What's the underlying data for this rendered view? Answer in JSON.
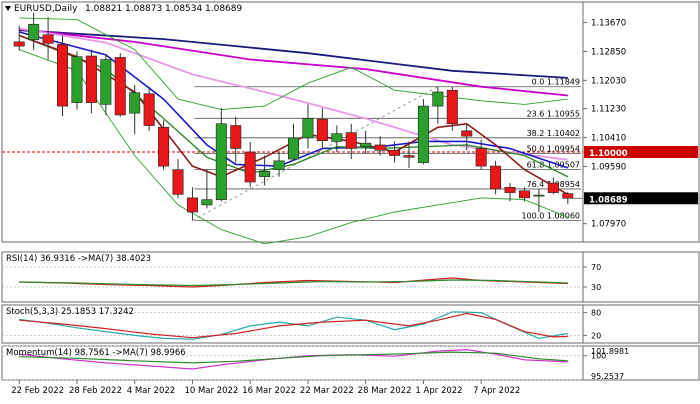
{
  "chart_data": [
    {
      "type": "candlestick",
      "title": "EURUSD,Daily",
      "title_values": [
        "1.08821",
        "1.08873",
        "1.08534",
        "1.08689"
      ],
      "colors": {
        "bull": "#2ca02c",
        "bear": "#e8181a",
        "wick": "#333333",
        "price_line": "#e8181a"
      },
      "ylim": [
        1.0745,
        1.1425
      ],
      "y_ticks": [
        "1.13670",
        "1.12850",
        "1.12030",
        "1.11230",
        "1.10410",
        "1.09590",
        "1.07970"
      ],
      "current_price": "1.08689",
      "candles": [
        {
          "o": 1.1312,
          "h": 1.1358,
          "l": 1.1288,
          "c": 1.13
        },
        {
          "o": 1.1318,
          "h": 1.1395,
          "l": 1.129,
          "c": 1.1362
        },
        {
          "o": 1.1332,
          "h": 1.1382,
          "l": 1.1262,
          "c": 1.1308
        },
        {
          "o": 1.1305,
          "h": 1.133,
          "l": 1.1102,
          "c": 1.113
        },
        {
          "o": 1.114,
          "h": 1.1285,
          "l": 1.112,
          "c": 1.127
        },
        {
          "o": 1.1272,
          "h": 1.129,
          "l": 1.111,
          "c": 1.114
        },
        {
          "o": 1.1135,
          "h": 1.1275,
          "l": 1.1105,
          "c": 1.1262
        },
        {
          "o": 1.1268,
          "h": 1.128,
          "l": 1.11,
          "c": 1.1105
        },
        {
          "o": 1.111,
          "h": 1.119,
          "l": 1.105,
          "c": 1.1168
        },
        {
          "o": 1.1165,
          "h": 1.1185,
          "l": 1.106,
          "c": 1.1075
        },
        {
          "o": 1.107,
          "h": 1.109,
          "l": 1.095,
          "c": 1.096
        },
        {
          "o": 1.095,
          "h": 1.098,
          "l": 1.087,
          "c": 1.088
        },
        {
          "o": 1.087,
          "h": 1.09,
          "l": 1.0806,
          "c": 1.083
        },
        {
          "o": 1.085,
          "h": 1.095,
          "l": 1.084,
          "c": 1.0865
        },
        {
          "o": 1.0865,
          "h": 1.1125,
          "l": 1.086,
          "c": 1.108
        },
        {
          "o": 1.1075,
          "h": 1.11,
          "l": 1.097,
          "c": 1.101
        },
        {
          "o": 1.1,
          "h": 1.1028,
          "l": 1.09,
          "c": 1.0915
        },
        {
          "o": 1.093,
          "h": 1.099,
          "l": 1.0905,
          "c": 1.0945
        },
        {
          "o": 1.095,
          "h": 1.1,
          "l": 1.093,
          "c": 1.0975
        },
        {
          "o": 1.098,
          "h": 1.108,
          "l": 1.0975,
          "c": 1.104
        },
        {
          "o": 1.104,
          "h": 1.1135,
          "l": 1.101,
          "c": 1.1095
        },
        {
          "o": 1.1093,
          "h": 1.1125,
          "l": 1.101,
          "c": 1.1032
        },
        {
          "o": 1.103,
          "h": 1.1075,
          "l": 1.1,
          "c": 1.1052
        },
        {
          "o": 1.1055,
          "h": 1.108,
          "l": 1.098,
          "c": 1.101
        },
        {
          "o": 1.1015,
          "h": 1.106,
          "l": 1.0995,
          "c": 1.1025
        },
        {
          "o": 1.102,
          "h": 1.1045,
          "l": 1.099,
          "c": 1.1005
        },
        {
          "o": 1.1005,
          "h": 1.103,
          "l": 1.097,
          "c": 1.099
        },
        {
          "o": 1.099,
          "h": 1.103,
          "l": 1.0955,
          "c": 1.0985
        },
        {
          "o": 1.097,
          "h": 1.115,
          "l": 1.0965,
          "c": 1.113
        },
        {
          "o": 1.113,
          "h": 1.1185,
          "l": 1.108,
          "c": 1.117
        },
        {
          "o": 1.1175,
          "h": 1.1185,
          "l": 1.106,
          "c": 1.108
        },
        {
          "o": 1.106,
          "h": 1.108,
          "l": 1.1005,
          "c": 1.1045
        },
        {
          "o": 1.101,
          "h": 1.1035,
          "l": 1.095,
          "c": 1.096
        },
        {
          "o": 1.096,
          "h": 1.0975,
          "l": 1.088,
          "c": 1.0895
        },
        {
          "o": 1.09,
          "h": 1.0912,
          "l": 1.086,
          "c": 1.0885
        },
        {
          "o": 1.089,
          "h": 1.09,
          "l": 1.086,
          "c": 1.087
        },
        {
          "o": 1.0875,
          "h": 1.0895,
          "l": 1.083,
          "c": 1.0878
        },
        {
          "o": 1.0912,
          "h": 1.0928,
          "l": 1.088,
          "c": 1.0885
        },
        {
          "o": 1.0882,
          "h": 1.0887,
          "l": 1.0853,
          "c": 1.0869
        }
      ],
      "moving_averages": [
        {
          "color": "#1a1a7a",
          "width": 1.8,
          "points": [
            [
              0,
              1.1345
            ],
            [
              10,
              1.132
            ],
            [
              20,
              1.128
            ],
            [
              30,
              1.123
            ],
            [
              38,
              1.121
            ]
          ]
        },
        {
          "color": "#cc00cc",
          "width": 1.8,
          "points": [
            [
              0,
              1.1348
            ],
            [
              8,
              1.1312
            ],
            [
              16,
              1.1262
            ],
            [
              24,
              1.1235
            ],
            [
              32,
              1.1185
            ],
            [
              38,
              1.116
            ]
          ]
        },
        {
          "color": "#e89ae8",
          "width": 1.8,
          "points": [
            [
              0,
              1.135
            ],
            [
              6,
              1.131
            ],
            [
              12,
              1.122
            ],
            [
              18,
              1.116
            ],
            [
              24,
              1.1095
            ],
            [
              30,
              1.102
            ],
            [
              38,
              1.0978
            ]
          ]
        },
        {
          "color": "#1a1acc",
          "width": 1.6,
          "points": [
            [
              0,
              1.134
            ],
            [
              6,
              1.1275
            ],
            [
              10,
              1.115
            ],
            [
              13,
              1.102
            ],
            [
              15,
              1.0965
            ],
            [
              18,
              1.096
            ],
            [
              21,
              1.101
            ],
            [
              25,
              1.1015
            ],
            [
              28,
              1.103
            ],
            [
              31,
              1.103
            ],
            [
              34,
              1.101
            ],
            [
              38,
              1.0955
            ]
          ]
        },
        {
          "color": "#2e8b2e",
          "width": 1.4,
          "points": [
            [
              0,
              1.133
            ],
            [
              6,
              1.1235
            ],
            [
              10,
              1.1095
            ],
            [
              13,
              1.0985
            ],
            [
              16,
              1.094
            ],
            [
              19,
              1.0965
            ],
            [
              22,
              1.1015
            ],
            [
              25,
              1.101
            ],
            [
              28,
              1.1015
            ],
            [
              31,
              1.102
            ],
            [
              35,
              1.099
            ],
            [
              38,
              1.093
            ]
          ]
        },
        {
          "color": "#8b1a1a",
          "width": 1.6,
          "points": [
            [
              0,
              1.133
            ],
            [
              4,
              1.127
            ],
            [
              8,
              1.117
            ],
            [
              12,
              1.096
            ],
            [
              14,
              1.093
            ],
            [
              17,
              1.0985
            ],
            [
              20,
              1.105
            ],
            [
              23,
              1.103
            ],
            [
              26,
              1.1
            ],
            [
              29,
              1.107
            ],
            [
              31,
              1.108
            ],
            [
              33,
              1.102
            ],
            [
              35,
              1.095
            ],
            [
              38,
              1.088
            ]
          ]
        },
        {
          "color": "#2ca02c",
          "width": 0.9,
          "points": [
            [
              0,
              1.138
            ],
            [
              4,
              1.1375
            ],
            [
              8,
              1.129
            ],
            [
              11,
              1.115
            ],
            [
              14,
              1.112
            ],
            [
              17,
              1.113
            ],
            [
              20,
              1.1195
            ],
            [
              23,
              1.124
            ],
            [
              26,
              1.1175
            ],
            [
              29,
              1.116
            ],
            [
              32,
              1.1145
            ],
            [
              35,
              1.1135
            ],
            [
              38,
              1.115
            ]
          ]
        },
        {
          "color": "#2ca02c",
          "width": 0.9,
          "points": [
            [
              0,
              1.129
            ],
            [
              4,
              1.123
            ],
            [
              8,
              1.099
            ],
            [
              11,
              1.085
            ],
            [
              14,
              1.078
            ],
            [
              17,
              1.074
            ],
            [
              20,
              1.076
            ],
            [
              23,
              1.08
            ],
            [
              26,
              1.083
            ],
            [
              29,
              1.085
            ],
            [
              32,
              1.087
            ],
            [
              35,
              1.0865
            ],
            [
              38,
              1.0815
            ]
          ]
        }
      ],
      "fibonacci": {
        "color": "#555555",
        "anchor_high": 1.11849,
        "anchor_low": 1.0806,
        "levels": [
          {
            "label": "0.0 1.11849",
            "value": 1.11849
          },
          {
            "label": "23.6 1.10955",
            "value": 1.10955
          },
          {
            "label": "38.2 1.10402",
            "value": 1.10402
          },
          {
            "label": "50.0 1.09954",
            "value": 1.09954
          },
          {
            "label": "61.8 1.09507",
            "value": 1.09507
          },
          {
            "label": "76.4 1.08954",
            "value": 1.08954
          },
          {
            "label": "100.0 1.08060",
            "value": 1.0806
          }
        ]
      },
      "horizontal_line": {
        "value": 1.1,
        "label": "1.10000",
        "color": "#cc0000"
      }
    },
    {
      "type": "line",
      "title": "RSI(14) 36.9316 ->MA(7) 38.4023",
      "ylim": [
        0,
        100
      ],
      "y_ticks": [
        "70",
        "30"
      ],
      "series": [
        {
          "color": "#cc2222",
          "points": [
            [
              0,
              40
            ],
            [
              3,
              38
            ],
            [
              6,
              35
            ],
            [
              9,
              33
            ],
            [
              12,
              30
            ],
            [
              14,
              33
            ],
            [
              17,
              39
            ],
            [
              20,
              43
            ],
            [
              23,
              41
            ],
            [
              26,
              39
            ],
            [
              29,
              46
            ],
            [
              30,
              48
            ],
            [
              32,
              43
            ],
            [
              35,
              40
            ],
            [
              38,
              37
            ]
          ]
        },
        {
          "color": "#2e8b2e",
          "points": [
            [
              0,
              40
            ],
            [
              4,
              38
            ],
            [
              8,
              35
            ],
            [
              12,
              33
            ],
            [
              15,
              35
            ],
            [
              18,
              38
            ],
            [
              21,
              41
            ],
            [
              24,
              40
            ],
            [
              27,
              41
            ],
            [
              30,
              44
            ],
            [
              33,
              43
            ],
            [
              36,
              40
            ],
            [
              38,
              38
            ]
          ]
        }
      ]
    },
    {
      "type": "line",
      "title": "Stoch(5,3,3) 25.1853 17.3242",
      "ylim": [
        0,
        100
      ],
      "y_ticks": [
        "80",
        "20"
      ],
      "series": [
        {
          "color": "#2aa7a7",
          "points": [
            [
              0,
              62
            ],
            [
              2,
              52
            ],
            [
              4,
              40
            ],
            [
              6,
              30
            ],
            [
              8,
              20
            ],
            [
              10,
              12
            ],
            [
              12,
              10
            ],
            [
              14,
              22
            ],
            [
              16,
              45
            ],
            [
              18,
              55
            ],
            [
              20,
              45
            ],
            [
              22,
              68
            ],
            [
              24,
              60
            ],
            [
              26,
              35
            ],
            [
              28,
              50
            ],
            [
              30,
              82
            ],
            [
              32,
              80
            ],
            [
              34,
              45
            ],
            [
              36,
              12
            ],
            [
              38,
              25
            ]
          ]
        },
        {
          "color": "#cc2222",
          "points": [
            [
              0,
              60
            ],
            [
              3,
              50
            ],
            [
              6,
              38
            ],
            [
              9,
              24
            ],
            [
              12,
              14
            ],
            [
              15,
              25
            ],
            [
              18,
              45
            ],
            [
              21,
              55
            ],
            [
              24,
              60
            ],
            [
              27,
              45
            ],
            [
              29,
              60
            ],
            [
              31,
              78
            ],
            [
              33,
              62
            ],
            [
              35,
              30
            ],
            [
              37,
              16
            ],
            [
              38,
              17
            ]
          ]
        }
      ]
    },
    {
      "type": "line",
      "title": "Momentum(14) 98.7561 ->MA(7) 98.9966",
      "ylim": [
        95.2537,
        101.8981
      ],
      "y_ticks": [
        "101.8981",
        "100",
        "95.2537"
      ],
      "series": [
        {
          "color": "#cc33cc",
          "points": [
            [
              0,
              100.3
            ],
            [
              3,
              99.4
            ],
            [
              6,
              98.6
            ],
            [
              9,
              98.0
            ],
            [
              12,
              97.4
            ],
            [
              14,
              98.2
            ],
            [
              17,
              99.2
            ],
            [
              20,
              100.0
            ],
            [
              23,
              100.2
            ],
            [
              26,
              99.9
            ],
            [
              29,
              100.9
            ],
            [
              31,
              101.2
            ],
            [
              33,
              100.3
            ],
            [
              35,
              99.2
            ],
            [
              38,
              98.8
            ]
          ]
        },
        {
          "color": "#2e8b2e",
          "points": [
            [
              0,
              99.8
            ],
            [
              4,
              99.5
            ],
            [
              8,
              99.0
            ],
            [
              12,
              98.6
            ],
            [
              15,
              98.9
            ],
            [
              18,
              99.5
            ],
            [
              21,
              100.0
            ],
            [
              24,
              100.2
            ],
            [
              27,
              100.4
            ],
            [
              30,
              100.7
            ],
            [
              33,
              100.5
            ],
            [
              36,
              99.4
            ],
            [
              38,
              99.0
            ]
          ]
        }
      ]
    }
  ],
  "x_axis": {
    "labels": [
      "22 Feb 2022",
      "28 Feb 2022",
      "4 Mar 2022",
      "10 Mar 2022",
      "16 Mar 2022",
      "22 Mar 2022",
      "28 Mar 2022",
      "1 Apr 2022",
      "7 Apr 2022"
    ],
    "label_index": [
      0,
      4,
      8,
      12,
      16,
      20,
      24,
      28,
      32
    ]
  }
}
